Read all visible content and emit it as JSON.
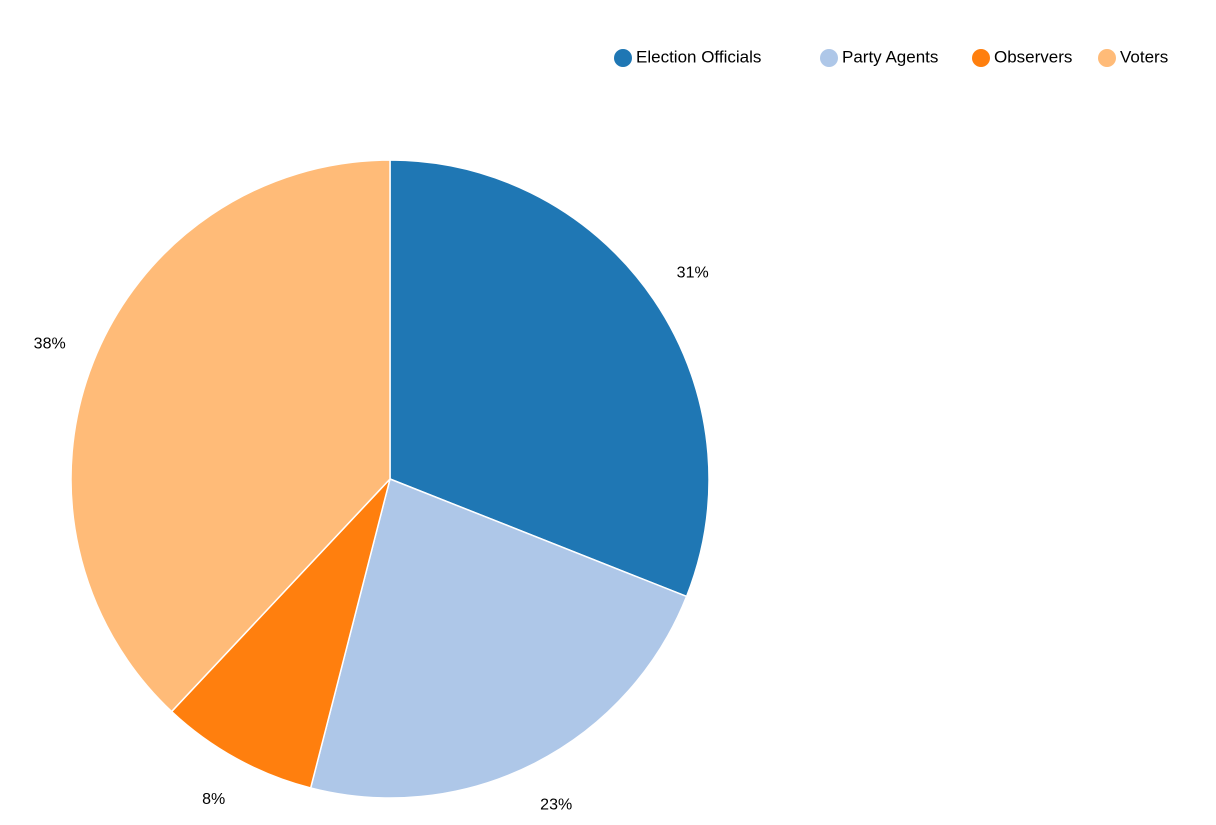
{
  "chart_data": {
    "type": "pie",
    "categories": [
      "Election Officials",
      "Party Agents",
      "Observers",
      "Voters"
    ],
    "values": [
      31,
      23,
      8,
      38
    ],
    "value_labels": [
      "31%",
      "23%",
      "8%",
      "38%"
    ],
    "colors": [
      "#1f77b4",
      "#aec7e8",
      "#ff7f0e",
      "#ffbb78"
    ],
    "legend": {
      "placement": "top-right",
      "entries": [
        "Election Officials",
        "Party Agents",
        "Observers",
        "Voters"
      ]
    },
    "start_angle": "12 o'clock",
    "direction": "clockwise"
  }
}
